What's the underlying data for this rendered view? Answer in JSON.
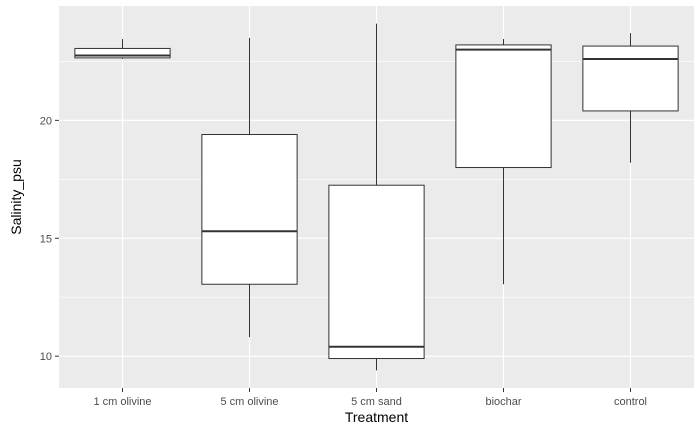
{
  "chart_data": {
    "type": "boxplot",
    "title": "",
    "xlabel": "Treatment",
    "ylabel": "Salinity_psu",
    "categories": [
      "1 cm olivine",
      "5 cm olivine",
      "5 cm sand",
      "biochar",
      "control"
    ],
    "boxes": [
      {
        "category": "1 cm olivine",
        "whisker_low": 22.6,
        "q1": 22.65,
        "median": 22.75,
        "q3": 23.05,
        "whisker_high": 23.45
      },
      {
        "category": "5 cm olivine",
        "whisker_low": 10.8,
        "q1": 13.05,
        "median": 15.3,
        "q3": 19.4,
        "whisker_high": 23.5
      },
      {
        "category": "5 cm sand",
        "whisker_low": 9.4,
        "q1": 9.9,
        "median": 10.4,
        "q3": 17.25,
        "whisker_high": 24.1
      },
      {
        "category": "biochar",
        "whisker_low": 13.05,
        "q1": 18.0,
        "median": 23.0,
        "q3": 23.2,
        "whisker_high": 23.45
      },
      {
        "category": "control",
        "whisker_low": 18.2,
        "q1": 20.4,
        "median": 22.6,
        "q3": 23.15,
        "whisker_high": 23.7
      }
    ],
    "y_ticks": [
      10,
      15,
      20
    ],
    "ylim": [
      8.65,
      24.85
    ],
    "grid": true,
    "panel_background": "#ebebeb",
    "grid_color": "#ffffff",
    "box_fill": "#ffffff",
    "box_stroke": "#333333",
    "legend": "none"
  }
}
